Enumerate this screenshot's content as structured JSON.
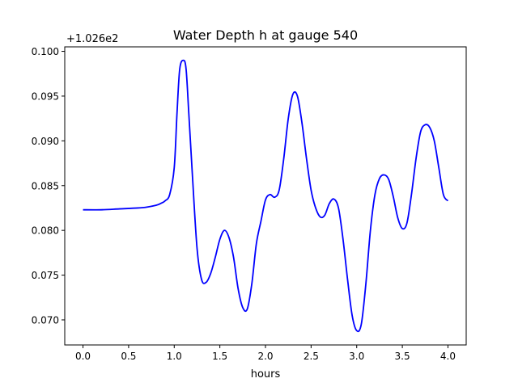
{
  "chart_data": {
    "type": "line",
    "title": "Water Depth h at gauge 540",
    "xlabel": "hours",
    "ylabel": "",
    "offset_label": "+1.026e2",
    "xlim": [
      -0.2,
      4.2
    ],
    "ylim": [
      0.0672,
      0.1005
    ],
    "x_ticks": [
      0.0,
      0.5,
      1.0,
      1.5,
      2.0,
      2.5,
      3.0,
      3.5,
      4.0
    ],
    "x_tick_labels": [
      "0.0",
      "0.5",
      "1.0",
      "1.5",
      "2.0",
      "2.5",
      "3.0",
      "3.5",
      "4.0"
    ],
    "y_ticks": [
      0.07,
      0.075,
      0.08,
      0.085,
      0.09,
      0.095,
      0.1
    ],
    "y_tick_labels": [
      "0.070",
      "0.075",
      "0.080",
      "0.085",
      "0.090",
      "0.095",
      "0.100"
    ],
    "grid": false,
    "series": [
      {
        "color": "#0000ff",
        "x": [
          0.0,
          0.2,
          0.4,
          0.6,
          0.7,
          0.8,
          0.85,
          0.9,
          0.95,
          1.0,
          1.03,
          1.06,
          1.1,
          1.13,
          1.16,
          1.2,
          1.25,
          1.3,
          1.35,
          1.4,
          1.45,
          1.5,
          1.55,
          1.6,
          1.65,
          1.7,
          1.75,
          1.8,
          1.85,
          1.9,
          1.95,
          2.0,
          2.05,
          2.1,
          2.15,
          2.2,
          2.25,
          2.3,
          2.35,
          2.4,
          2.45,
          2.5,
          2.55,
          2.6,
          2.65,
          2.7,
          2.75,
          2.8,
          2.85,
          2.9,
          2.95,
          3.0,
          3.05,
          3.1,
          3.15,
          3.2,
          3.25,
          3.3,
          3.35,
          3.4,
          3.45,
          3.5,
          3.55,
          3.6,
          3.65,
          3.7,
          3.75,
          3.8,
          3.85,
          3.9,
          3.95,
          4.0
        ],
        "y": [
          0.0823,
          0.0823,
          0.0824,
          0.0825,
          0.0826,
          0.0828,
          0.083,
          0.0833,
          0.084,
          0.087,
          0.093,
          0.098,
          0.099,
          0.098,
          0.093,
          0.086,
          0.078,
          0.0745,
          0.0742,
          0.0752,
          0.077,
          0.079,
          0.08,
          0.0792,
          0.077,
          0.0735,
          0.0714,
          0.0712,
          0.074,
          0.0785,
          0.081,
          0.0834,
          0.084,
          0.0837,
          0.0845,
          0.088,
          0.0925,
          0.0952,
          0.095,
          0.092,
          0.088,
          0.0845,
          0.0825,
          0.0815,
          0.0817,
          0.083,
          0.0835,
          0.0825,
          0.079,
          0.0745,
          0.0705,
          0.0688,
          0.0695,
          0.074,
          0.08,
          0.084,
          0.0858,
          0.0862,
          0.0857,
          0.0838,
          0.0814,
          0.0802,
          0.0808,
          0.084,
          0.088,
          0.091,
          0.0918,
          0.0915,
          0.09,
          0.087,
          0.084,
          0.0833
        ]
      }
    ]
  }
}
